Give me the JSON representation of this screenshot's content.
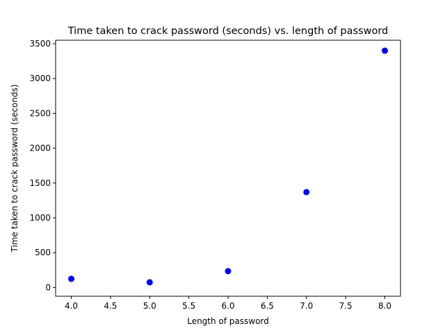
{
  "chart_data": {
    "type": "scatter",
    "title": "Time taken to crack password (seconds) vs. length of password",
    "xlabel": "Length of password",
    "ylabel": "Time taken to crack password (seconds)",
    "x": [
      4,
      5,
      6,
      7,
      8
    ],
    "y": [
      125,
      75,
      235,
      1370,
      3400
    ],
    "xlim": [
      3.8,
      8.2
    ],
    "ylim": [
      -125,
      3550
    ],
    "xticks": [
      4.0,
      4.5,
      5.0,
      5.5,
      6.0,
      6.5,
      7.0,
      7.5,
      8.0
    ],
    "xtick_labels": [
      "4.0",
      "4.5",
      "5.0",
      "5.5",
      "6.0",
      "6.5",
      "7.0",
      "7.5",
      "8.0"
    ],
    "yticks": [
      0,
      500,
      1000,
      1500,
      2000,
      2500,
      3000,
      3500
    ],
    "ytick_labels": [
      "0",
      "500",
      "1000",
      "1500",
      "2000",
      "2500",
      "3000",
      "3500"
    ],
    "marker_color": "#0000ff",
    "grid": false,
    "legend": "none"
  }
}
